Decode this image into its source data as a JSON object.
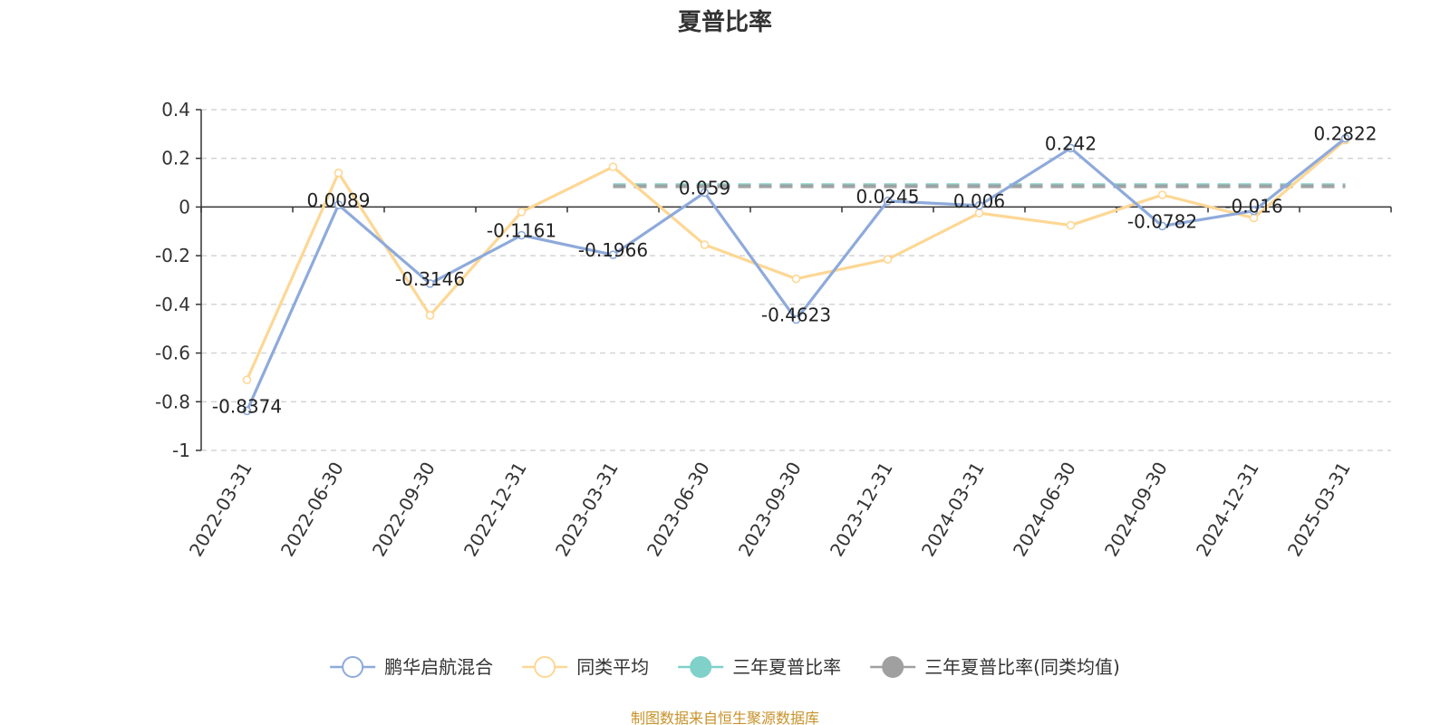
{
  "chart_data": {
    "type": "line",
    "title": "夏普比率",
    "categories": [
      "2022-03-31",
      "2022-06-30",
      "2022-09-30",
      "2022-12-31",
      "2023-03-31",
      "2023-06-30",
      "2023-09-30",
      "2023-12-31",
      "2024-03-31",
      "2024-06-30",
      "2024-09-30",
      "2024-12-31",
      "2025-03-31"
    ],
    "ylim": [
      -1,
      0.4
    ],
    "yticks": [
      0.4,
      0.2,
      0,
      -0.2,
      -0.4,
      -0.6,
      -0.8,
      -1
    ],
    "grid": true,
    "legend_position": "bottom",
    "series": [
      {
        "name": "鹏华启航混合",
        "color": "#8eaadb",
        "values": [
          -0.8374,
          0.0089,
          -0.3146,
          -0.1161,
          -0.1966,
          0.059,
          -0.4623,
          0.0245,
          0.006,
          0.242,
          -0.0782,
          -0.016,
          0.2822
        ],
        "labels": [
          "-0.8374",
          "0.0089",
          "-0.3146",
          "-0.1161",
          "-0.1966",
          "0.059",
          "-0.4623",
          "0.0245",
          "0.006",
          "0.242",
          "-0.0782",
          "-0.016",
          "0.2822"
        ]
      },
      {
        "name": "同类平均",
        "color": "#fdd795",
        "values": [
          -0.71,
          0.14,
          -0.445,
          -0.02,
          0.165,
          -0.155,
          -0.295,
          -0.215,
          -0.025,
          -0.075,
          0.05,
          -0.045,
          0.275
        ]
      },
      {
        "name": "三年夏普比率",
        "color": "#7fd1c9",
        "from_category": "2023-03-31",
        "to_category": "2025-03-31",
        "value": 0.09
      },
      {
        "name": "三年夏普比率(同类均值)",
        "color": "#a0a0a0",
        "from_category": "2023-03-31",
        "to_category": "2025-03-31",
        "value": 0.085
      }
    ]
  },
  "source": {
    "text": "制图数据来自恒生聚源数据库",
    "color": "#c8922a"
  }
}
